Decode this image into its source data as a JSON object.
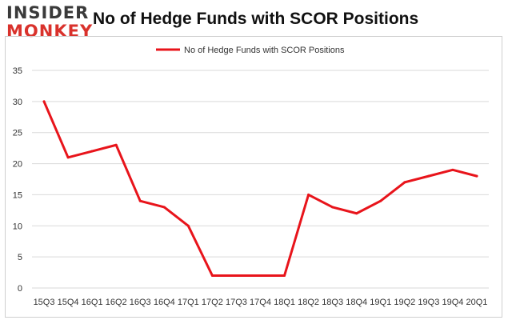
{
  "logo": {
    "top": "INSIDER",
    "bottom": "MONKEY"
  },
  "colors": {
    "line": "#e8141b",
    "grid": "#d9d9d9",
    "text": "#333333"
  },
  "chart_data": {
    "type": "line",
    "title": "No of Hedge Funds with SCOR Positions",
    "xlabel": "",
    "ylabel": "",
    "ylim": [
      0,
      35
    ],
    "yticks": [
      0,
      5,
      10,
      15,
      20,
      25,
      30,
      35
    ],
    "grid": true,
    "legend_position": "top-center",
    "categories": [
      "15Q3",
      "15Q4",
      "16Q1",
      "16Q2",
      "16Q3",
      "16Q4",
      "17Q1",
      "17Q2",
      "17Q3",
      "17Q4",
      "18Q1",
      "18Q2",
      "18Q3",
      "18Q4",
      "19Q1",
      "19Q2",
      "19Q3",
      "19Q4",
      "20Q1"
    ],
    "series": [
      {
        "name": "No of Hedge Funds with SCOR Positions",
        "values": [
          30,
          21,
          22,
          23,
          14,
          13,
          10,
          2,
          2,
          2,
          2,
          15,
          13,
          12,
          14,
          17,
          18,
          19,
          18
        ]
      }
    ]
  }
}
